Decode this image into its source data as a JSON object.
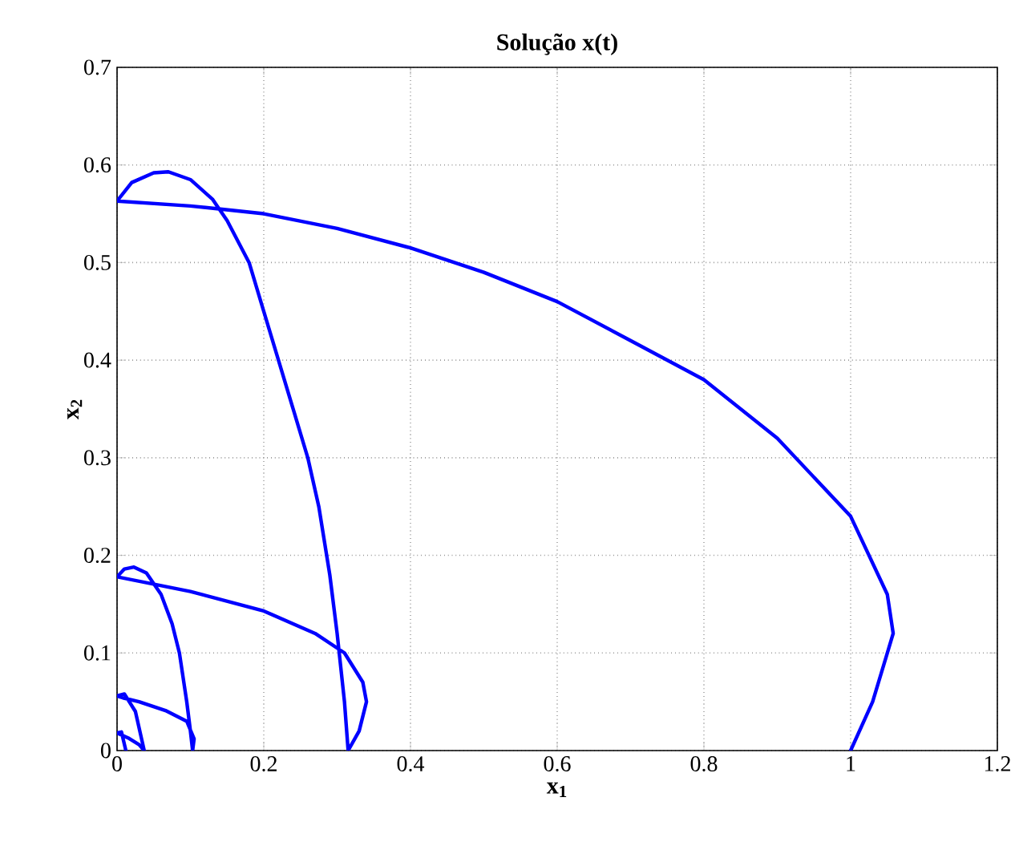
{
  "chart_data": {
    "type": "line",
    "title": "Solução x(t)",
    "xlabel": "x$_{1}$",
    "ylabel": "x$_{2}$",
    "xlim": [
      0,
      1.2
    ],
    "ylim": [
      0,
      0.7
    ],
    "xticks": [
      0,
      0.2,
      0.4,
      0.6,
      0.8,
      1,
      1.2
    ],
    "yticks": [
      0,
      0.1,
      0.2,
      0.3,
      0.4,
      0.5,
      0.6,
      0.7
    ],
    "grid": true,
    "marker": "none",
    "line_style": "solid",
    "series": [
      {
        "color": "#0000ff",
        "x": [
          1.0,
          1.03,
          1.05,
          1.058,
          1.05,
          1.0,
          0.9,
          0.8,
          0.7,
          0.6,
          0.5,
          0.4,
          0.3,
          0.2,
          0.1,
          0,
          0.02,
          0.05,
          0.07,
          0.1,
          0.13,
          0.15,
          0.18,
          0.2,
          0.22,
          0.24,
          0.26,
          0.275,
          0.29,
          0.3,
          0.31,
          0.315,
          0.33,
          0.34,
          0.335,
          0.31,
          0.27,
          0.2,
          0.1,
          0,
          0.01,
          0.023,
          0.04,
          0.06,
          0.075,
          0.085,
          0.095,
          0.1,
          0.103,
          0.105,
          0.095,
          0.066,
          0.03,
          0.008,
          0,
          0.01,
          0.025,
          0.037,
          0.03,
          0.015,
          0,
          0.006,
          0.012
        ],
        "values": [
          0,
          0.05,
          0.1,
          0.12,
          0.16,
          0.24,
          0.32,
          0.38,
          0.42,
          0.46,
          0.49,
          0.515,
          0.535,
          0.55,
          0.558,
          0.563,
          0.582,
          0.592,
          0.593,
          0.585,
          0.565,
          0.543,
          0.5,
          0.45,
          0.4,
          0.35,
          0.3,
          0.25,
          0.18,
          0.12,
          0.05,
          0,
          0.02,
          0.05,
          0.07,
          0.1,
          0.12,
          0.143,
          0.163,
          0.178,
          0.186,
          0.188,
          0.182,
          0.16,
          0.13,
          0.1,
          0.05,
          0.02,
          0,
          0.012,
          0.03,
          0.041,
          0.05,
          0.054,
          0.056,
          0.058,
          0.04,
          0,
          0.006,
          0.013,
          0.018,
          0.019,
          0
        ]
      }
    ]
  }
}
